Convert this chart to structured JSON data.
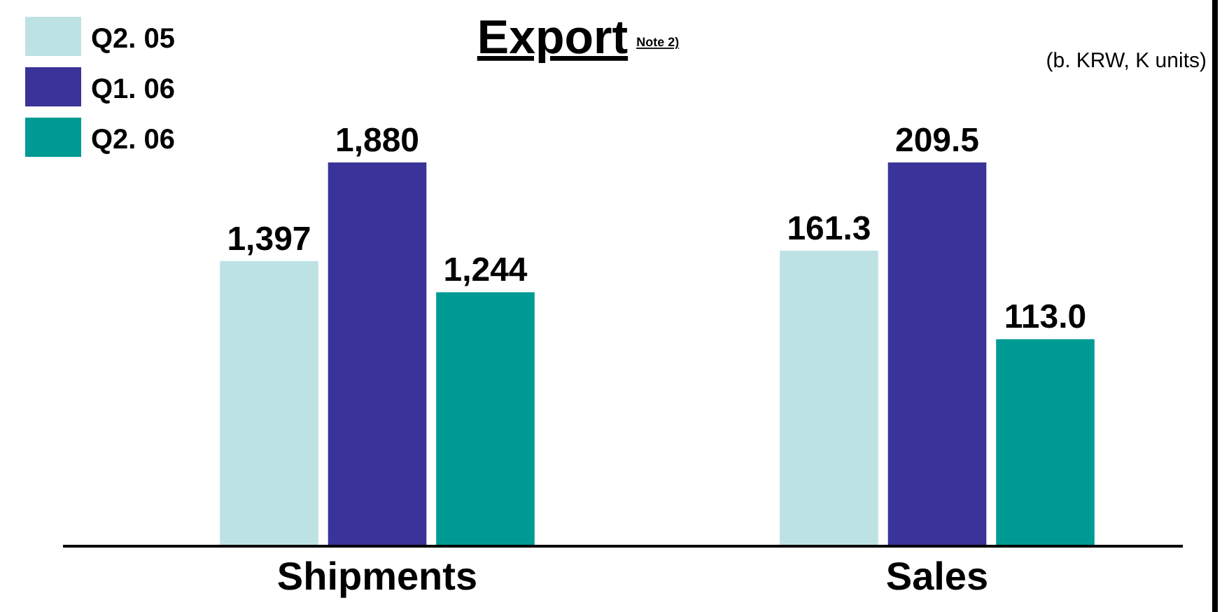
{
  "chart_data": [
    {
      "type": "bar",
      "title": "Export$^{Note 2)}$",
      "annotations": [
        "(b. KRW, K units)"
      ],
      "categories": [
        "Shipments"
      ],
      "legend": "top left",
      "series": [
        {
          "name": "Q2. 05",
          "color": "#bde2e4",
          "values": [
            1397
          ],
          "value_labels": [
            "1,397"
          ]
        },
        {
          "name": "Q1. 06",
          "color": "#3a3399",
          "values": [
            1880
          ],
          "value_labels": [
            "1,880"
          ]
        },
        {
          "name": "Q2. 06",
          "color": "#009a94",
          "values": [
            1244
          ],
          "value_labels": [
            "1,244"
          ]
        }
      ]
    },
    {
      "type": "bar",
      "categories": [
        "Sales"
      ],
      "series": [
        {
          "color": "#bde2e4",
          "values": [
            161.3
          ],
          "value_labels": [
            "161.3"
          ]
        },
        {
          "color": "#3a3399",
          "values": [
            209.5
          ],
          "value_labels": [
            "209.5"
          ]
        },
        {
          "color": "#009a94",
          "values": [
            113.0
          ],
          "value_labels": [
            "113.0"
          ]
        }
      ]
    }
  ]
}
